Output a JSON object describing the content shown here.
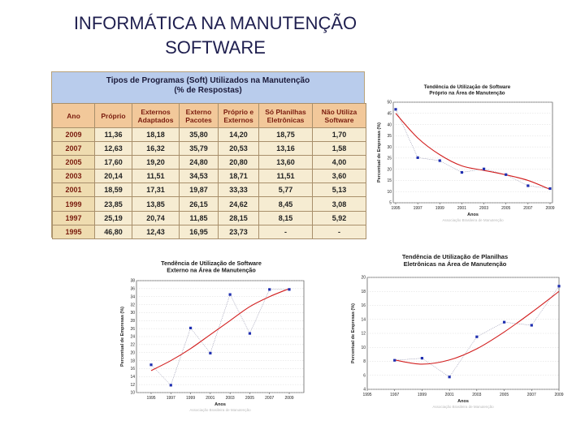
{
  "slide": {
    "title_line1": "INFORMÁTICA NA MANUTENÇÃO",
    "title_line2": "SOFTWARE"
  },
  "table": {
    "caption_line1": "Tipos de Programas (Soft) Utilizados na Manutenção",
    "caption_line2": "(% de Respostas)",
    "headers": [
      "Ano",
      "Próprio",
      "Externos Adaptados",
      "Externo Pacotes",
      "Próprio e Externos",
      "Só Planilhas Eletrônicas",
      "Não Utiliza Software"
    ],
    "rows": [
      [
        "2009",
        "11,36",
        "18,18",
        "35,80",
        "14,20",
        "18,75",
        "1,70"
      ],
      [
        "2007",
        "12,63",
        "16,32",
        "35,79",
        "20,53",
        "13,16",
        "1,58"
      ],
      [
        "2005",
        "17,60",
        "19,20",
        "24,80",
        "20,80",
        "13,60",
        "4,00"
      ],
      [
        "2003",
        "20,14",
        "11,51",
        "34,53",
        "18,71",
        "11,51",
        "3,60"
      ],
      [
        "2001",
        "18,59",
        "17,31",
        "19,87",
        "33,33",
        "5,77",
        "5,13"
      ],
      [
        "1999",
        "23,85",
        "13,85",
        "26,15",
        "24,62",
        "8,45",
        "3,08"
      ],
      [
        "1997",
        "25,19",
        "20,74",
        "11,85",
        "28,15",
        "8,15",
        "5,92"
      ],
      [
        "1995",
        "46,80",
        "12,43",
        "16,95",
        "23,73",
        "-",
        "-"
      ]
    ]
  },
  "chart_data": [
    {
      "type": "scatter",
      "title_lines": [
        "Tendência de Utilização de Software",
        "Próprio na Área de Manutenção"
      ],
      "xlabel": "Anos",
      "ylabel": "Percentual de Empresas (%)",
      "x": [
        1995,
        1997,
        1999,
        2001,
        2003,
        2005,
        2007,
        2009
      ],
      "y": [
        46.8,
        25.19,
        23.85,
        18.59,
        20.14,
        17.6,
        12.63,
        11.36
      ],
      "trend": [
        [
          1995,
          45
        ],
        [
          1997,
          34
        ],
        [
          1999,
          26.5
        ],
        [
          2001,
          21.5
        ],
        [
          2003,
          19.5
        ],
        [
          2005,
          17.5
        ],
        [
          2007,
          15
        ],
        [
          2009,
          11
        ]
      ],
      "xticks": [
        "1995",
        "1997",
        "1999",
        "2001",
        "2003",
        "2005",
        "2007",
        "2009"
      ],
      "yticks": [
        5,
        10,
        15,
        20,
        25,
        30,
        35,
        40,
        45,
        50
      ],
      "ylim": [
        5,
        50
      ],
      "source": "Associação Brasileira de Manutenção",
      "colors": {
        "points": "#1f2fb0",
        "line": "#7f7f9f",
        "trend": "#d21e1e"
      }
    },
    {
      "type": "scatter",
      "title_lines": [
        "Tendência de Utilização de Software",
        "Externo na Área de Manutenção"
      ],
      "xlabel": "Anos",
      "ylabel": "Percentual de Empresas (%)",
      "x": [
        1995,
        1997,
        1999,
        2001,
        2003,
        2005,
        2007,
        2009
      ],
      "y": [
        16.95,
        11.85,
        26.15,
        19.87,
        34.53,
        24.8,
        35.79,
        35.8
      ],
      "trend": [
        [
          1995,
          15.5
        ],
        [
          1997,
          18
        ],
        [
          1999,
          21
        ],
        [
          2001,
          24.5
        ],
        [
          2003,
          28
        ],
        [
          2005,
          31.5
        ],
        [
          2007,
          34
        ],
        [
          2009,
          36
        ]
      ],
      "xticks": [
        "1995",
        "1997",
        "1999",
        "2001",
        "2003",
        "2005",
        "2007",
        "2009"
      ],
      "yticks": [
        10,
        12,
        14,
        16,
        18,
        20,
        22,
        24,
        26,
        28,
        30,
        32,
        34,
        36,
        38
      ],
      "ylim": [
        10,
        38
      ],
      "source": "Associação Brasileira de Manutenção",
      "colors": {
        "points": "#1f2fb0",
        "line": "#7f7f9f",
        "trend": "#d21e1e"
      }
    },
    {
      "type": "scatter",
      "title_lines": [
        "Tendência de Utilização de Planilhas",
        "Eletrônicas na Área de Manutenção"
      ],
      "xlabel": "Anos",
      "ylabel": "Percentual de Empresas (%)",
      "x": [
        1997,
        1999,
        2001,
        2003,
        2005,
        2007,
        2009
      ],
      "y": [
        8.15,
        8.45,
        5.77,
        11.51,
        13.6,
        13.16,
        18.75
      ],
      "trend": [
        [
          1997,
          8.2
        ],
        [
          1999,
          7.6
        ],
        [
          2001,
          8.2
        ],
        [
          2003,
          9.8
        ],
        [
          2005,
          12.2
        ],
        [
          2007,
          15
        ],
        [
          2009,
          18
        ]
      ],
      "xticks": [
        "1995",
        "1997",
        "1999",
        "2001",
        "2003",
        "2005",
        "2007",
        "2009"
      ],
      "yticks": [
        4,
        6,
        8,
        10,
        12,
        14,
        16,
        18,
        20
      ],
      "ylim": [
        4,
        20
      ],
      "source": "Associação Brasileira de Manutenção",
      "colors": {
        "points": "#1f2fb0",
        "line": "#7f7f9f",
        "trend": "#d21e1e"
      }
    }
  ]
}
